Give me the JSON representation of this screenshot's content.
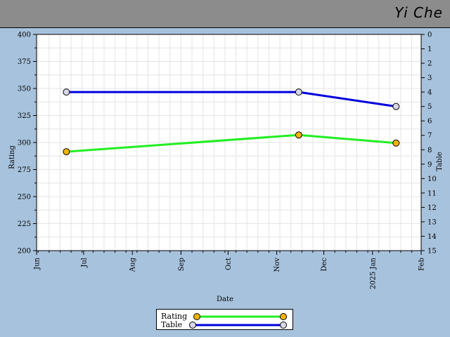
{
  "header": {
    "title": "Yi Che"
  },
  "chart_data": {
    "type": "line",
    "xlabel": "Date",
    "ylabel": "Rating",
    "y2label": "Table",
    "xlim": [
      "2024-06-01",
      "2025-02-01"
    ],
    "ylim": [
      200,
      400
    ],
    "y2lim": [
      0,
      15
    ],
    "y2_inverted": true,
    "grid": true,
    "legend_position": "bottom-center",
    "x_ticks": [
      {
        "date": "2024-06-01",
        "label": "Jun"
      },
      {
        "date": "2024-07-01",
        "label": "Jul"
      },
      {
        "date": "2024-08-01",
        "label": "Aug"
      },
      {
        "date": "2024-09-01",
        "label": "Sep"
      },
      {
        "date": "2024-10-01",
        "label": "Oct"
      },
      {
        "date": "2024-11-01",
        "label": "Nov"
      },
      {
        "date": "2024-12-01",
        "label": "Dec"
      },
      {
        "date": "2025-01-01",
        "label": "2025 Jan"
      },
      {
        "date": "2025-02-01",
        "label": "Feb"
      }
    ],
    "y_ticks": [
      200,
      225,
      250,
      275,
      300,
      325,
      350,
      375,
      400
    ],
    "y2_ticks": [
      0,
      1,
      2,
      3,
      4,
      5,
      6,
      7,
      8,
      9,
      10,
      11,
      12,
      13,
      14,
      15
    ],
    "series": [
      {
        "name": "Rating",
        "axis": "left",
        "line_color": "#22ee22",
        "marker_color": "#f0b400",
        "points": [
          {
            "date": "2024-06-20",
            "value": 291.5
          },
          {
            "date": "2024-11-15",
            "value": 307
          },
          {
            "date": "2025-01-16",
            "value": 299.5
          }
        ]
      },
      {
        "name": "Table",
        "axis": "right",
        "line_color": "#0000dd",
        "marker_color": "#d8d8e8",
        "points": [
          {
            "date": "2024-06-20",
            "value": 4
          },
          {
            "date": "2024-11-15",
            "value": 4
          },
          {
            "date": "2025-01-16",
            "value": 5
          }
        ]
      }
    ]
  }
}
